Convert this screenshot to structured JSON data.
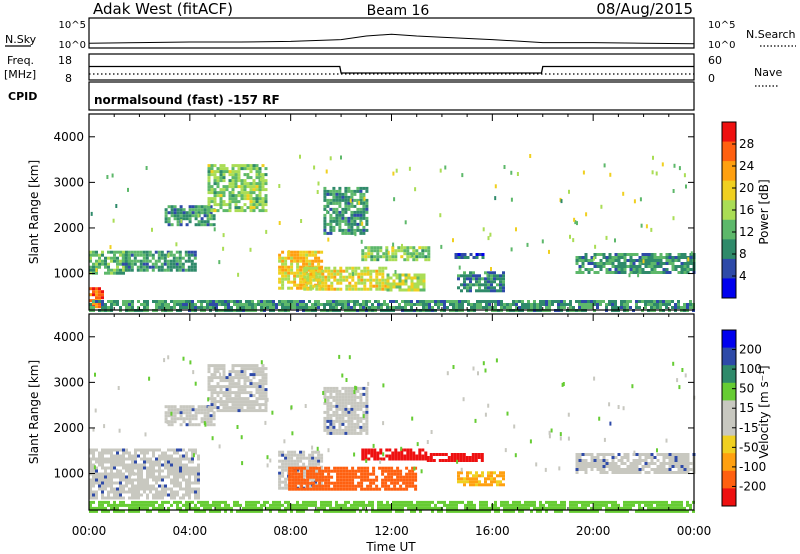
{
  "header": {
    "station": "Adak West (fitACF)",
    "beam": "Beam 16",
    "date": "08/Aug/2015"
  },
  "top_panels": {
    "nsky_label": "N.Sky",
    "nsky_ticks": [
      "10^5",
      "10^0"
    ],
    "nsearch_label": "N.Search",
    "nsearch_ticks": [
      "10^5",
      "10^0"
    ],
    "freq_label": "Freq.",
    "freq_unit": "[MHz]",
    "freq_ticks": [
      "18",
      "8"
    ],
    "nave_label": "Nave",
    "nave_ticks": [
      "60",
      "0"
    ],
    "cpid_label": "CPID",
    "cpid_text": "normalsound (fast) -157 RF"
  },
  "colors": {
    "power_scale": [
      "#0000ee",
      "#2e4aa8",
      "#2f8a6a",
      "#5db86a",
      "#aadd55",
      "#f0d020",
      "#ffa010",
      "#ff6010",
      "#ee1010"
    ],
    "velocity_scale": [
      "#ee1010",
      "#ff6010",
      "#ffa010",
      "#f0d020",
      "#c8c8c0",
      "#c8c8c0",
      "#66cc33",
      "#2f8a6a",
      "#2e4aa8",
      "#0000ee"
    ],
    "ground_scatter": "#c8c8c0"
  },
  "chart_data": [
    {
      "type": "line",
      "title": "",
      "xlabel": "",
      "ylabel": "N.Sky",
      "x": [
        0,
        2,
        4,
        6,
        8,
        10,
        11,
        12,
        13,
        14,
        16,
        18,
        20,
        22,
        24
      ],
      "series": [
        {
          "name": "N.Sky",
          "values": [
            0.8,
            0.9,
            1.0,
            1.0,
            1.1,
            1.4,
            2.0,
            2.3,
            2.0,
            1.8,
            1.4,
            0.9,
            0.9,
            0.8,
            0.7
          ]
        }
      ],
      "ylim": [
        0,
        5
      ]
    },
    {
      "type": "line",
      "ylabel": "Freq. [MHz]",
      "x": [
        0,
        9.95,
        10.0,
        17.95,
        18.0,
        24
      ],
      "series": [
        {
          "name": "Freq.",
          "values": [
            13.2,
            13.2,
            10.7,
            10.7,
            13.2,
            13.2
          ]
        },
        {
          "name": "Nave",
          "values": [
            4,
            4,
            4,
            4,
            4,
            4
          ]
        }
      ],
      "ylim": [
        8,
        18
      ]
    },
    {
      "type": "heatmap",
      "title": "",
      "xlabel": "",
      "ylabel": "Slant Range [km]",
      "colorbar_label": "Power [dB]",
      "colorbar_ticks": [
        "28",
        "24",
        "20",
        "16",
        "12",
        "8",
        "4"
      ],
      "y_ticks": [
        "4000",
        "3000",
        "2000",
        "1000"
      ],
      "xlim": [
        0,
        24
      ],
      "ylim": [
        200,
        4500
      ],
      "regions": [
        {
          "t0": 0.0,
          "t1": 1.6,
          "r0": 1000,
          "r1": 1500,
          "v": 12
        },
        {
          "t0": 0.0,
          "t1": 0.5,
          "r0": 250,
          "r1": 700,
          "v": 26
        },
        {
          "t0": 1.3,
          "t1": 4.2,
          "r0": 1050,
          "r1": 1500,
          "v": 10
        },
        {
          "t0": 3.0,
          "t1": 5.0,
          "r0": 2100,
          "r1": 2500,
          "v": 10
        },
        {
          "t0": 4.7,
          "t1": 7.0,
          "r0": 2400,
          "r1": 3400,
          "v": 14
        },
        {
          "t0": 7.5,
          "t1": 9.2,
          "r0": 650,
          "r1": 1500,
          "v": 20
        },
        {
          "t0": 8.5,
          "t1": 11.8,
          "r0": 650,
          "r1": 1150,
          "v": 18
        },
        {
          "t0": 11.8,
          "t1": 13.3,
          "r0": 650,
          "r1": 1000,
          "v": 16
        },
        {
          "t0": 9.3,
          "t1": 11.0,
          "r0": 1900,
          "r1": 2900,
          "v": 10
        },
        {
          "t0": 10.8,
          "t1": 13.5,
          "r0": 1300,
          "r1": 1600,
          "v": 14
        },
        {
          "t0": 14.5,
          "t1": 15.6,
          "r0": 1350,
          "r1": 1450,
          "v": 6
        },
        {
          "t0": 14.6,
          "t1": 16.4,
          "r0": 650,
          "r1": 1050,
          "v": 8
        },
        {
          "t0": 19.3,
          "t1": 24.0,
          "r0": 1000,
          "r1": 1450,
          "v": 10
        },
        {
          "t0": 0.0,
          "t1": 24.0,
          "r0": 200,
          "r1": 420,
          "v": 10
        }
      ]
    },
    {
      "type": "heatmap",
      "ylabel": "Slant Range [km]",
      "xlabel": "Time UT",
      "colorbar_label": "Velocity [m s⁻¹]",
      "colorbar_ticks": [
        "200",
        "100",
        "50",
        "15",
        "-15",
        "-50",
        "-100",
        "-200"
      ],
      "y_ticks": [
        "4000",
        "3000",
        "2000",
        "1000"
      ],
      "x_ticks": [
        "00:00",
        "04:00",
        "08:00",
        "12:00",
        "16:00",
        "20:00",
        "00:00"
      ],
      "xlim": [
        0,
        24
      ],
      "ylim": [
        200,
        4500
      ],
      "regions": [
        {
          "t0": 0.0,
          "t1": 4.3,
          "r0": 450,
          "r1": 1550,
          "v": 0
        },
        {
          "t0": 3.0,
          "t1": 5.0,
          "r0": 2100,
          "r1": 2500,
          "v": 0
        },
        {
          "t0": 4.7,
          "t1": 7.0,
          "r0": 2400,
          "r1": 3400,
          "v": 0
        },
        {
          "t0": 7.5,
          "t1": 9.2,
          "r0": 650,
          "r1": 1500,
          "v": 0
        },
        {
          "t0": 7.9,
          "t1": 13.0,
          "r0": 650,
          "r1": 1150,
          "v": -80
        },
        {
          "t0": 9.3,
          "t1": 11.0,
          "r0": 1900,
          "r1": 2900,
          "v": 0
        },
        {
          "t0": 10.8,
          "t1": 13.4,
          "r0": 1300,
          "r1": 1550,
          "v": -200
        },
        {
          "t0": 13.4,
          "t1": 15.6,
          "r0": 1300,
          "r1": 1450,
          "v": -200
        },
        {
          "t0": 14.6,
          "t1": 16.4,
          "r0": 750,
          "r1": 1050,
          "v": -30
        },
        {
          "t0": 19.3,
          "t1": 24.0,
          "r0": 1000,
          "r1": 1450,
          "v": 0
        },
        {
          "t0": 0.0,
          "t1": 24.0,
          "r0": 200,
          "r1": 400,
          "v": 20
        }
      ]
    }
  ]
}
